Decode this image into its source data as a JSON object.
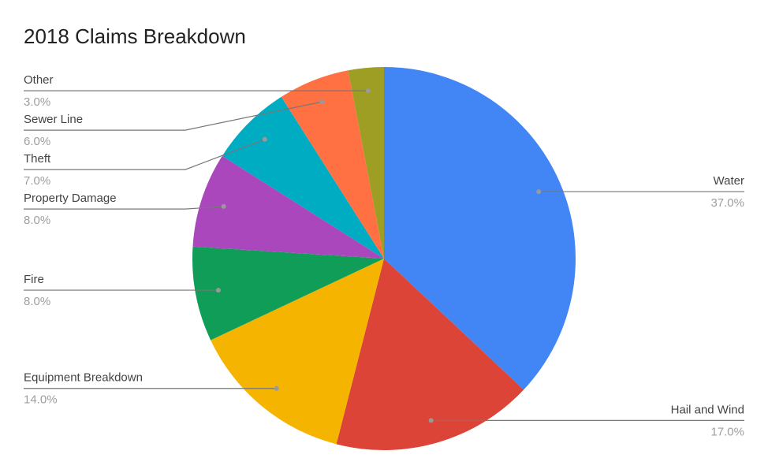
{
  "chart_data": {
    "type": "pie",
    "title": "2018 Claims Breakdown",
    "categories": [
      "Water",
      "Hail and Wind",
      "Equipment Breakdown",
      "Fire",
      "Property Damage",
      "Theft",
      "Sewer Line",
      "Other"
    ],
    "values": [
      37,
      17,
      14,
      8,
      8,
      7,
      6,
      3
    ],
    "value_labels": [
      "37.0%",
      "17.0%",
      "14.0%",
      "8.0%",
      "8.0%",
      "7.0%",
      "6.0%",
      "3.0%"
    ],
    "colors": [
      "#4285f4",
      "#db4437",
      "#f4b400",
      "#0f9d58",
      "#ab47bc",
      "#00acc1",
      "#ff7043",
      "#9e9d24"
    ]
  }
}
